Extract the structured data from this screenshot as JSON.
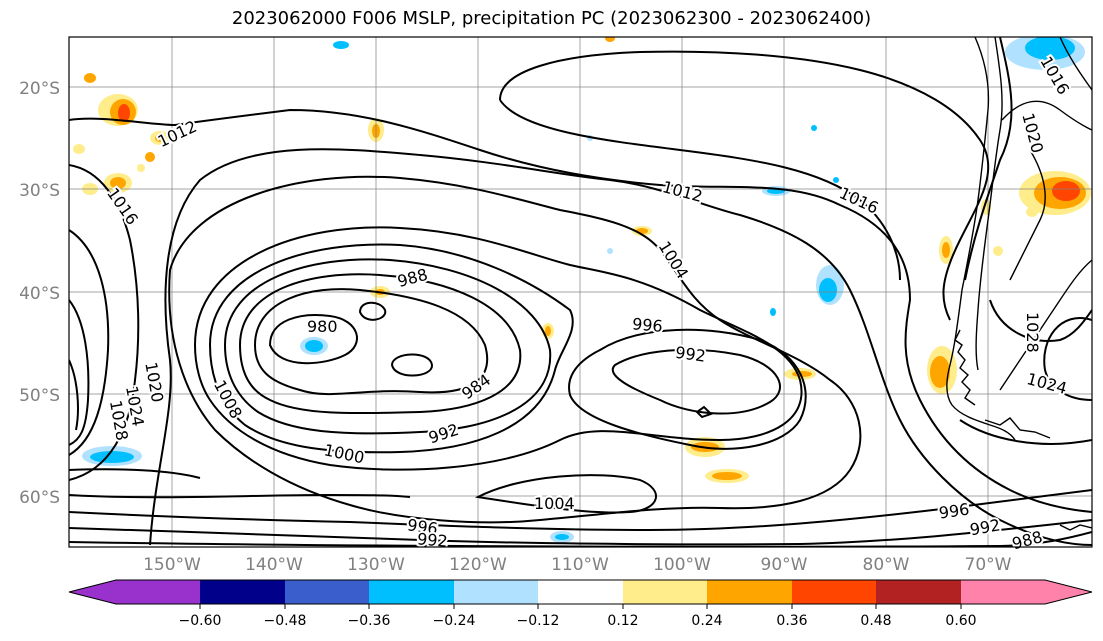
{
  "title": "2023062000 F006 MSLP, precipitation PC (2023062300 - 2023062400)",
  "lat_labels": [
    "20°S",
    "30°S",
    "40°S",
    "50°S",
    "60°S"
  ],
  "lon_labels": [
    "150°W",
    "140°W",
    "130°W",
    "120°W",
    "110°W",
    "100°W",
    "90°W",
    "80°W",
    "70°W"
  ],
  "isobar_labels": [
    "1012",
    "1016",
    "1016",
    "1020",
    "1012",
    "1016",
    "1004",
    "988",
    "980",
    "996",
    "992",
    "984",
    "992",
    "1000",
    "1004",
    "1008",
    "1020",
    "1024",
    "1028",
    "1028",
    "1024",
    "996",
    "992",
    "996",
    "992",
    "988"
  ],
  "colorbar": {
    "ticks": [
      "−0.60",
      "−0.48",
      "−0.36",
      "−0.24",
      "−0.12",
      "0.12",
      "0.24",
      "0.36",
      "0.48",
      "0.60"
    ],
    "colors": [
      "#9932CC",
      "#00008B",
      "#3A5FCD",
      "#00BFFF",
      "#B0E2FF",
      "#FFFFFF",
      "#FFEC8B",
      "#FFA500",
      "#FF4500",
      "#B22222",
      "#FF82AB"
    ]
  },
  "colors": {
    "coast": "#000000",
    "grid": "#808080",
    "isobar": "#000000"
  }
}
